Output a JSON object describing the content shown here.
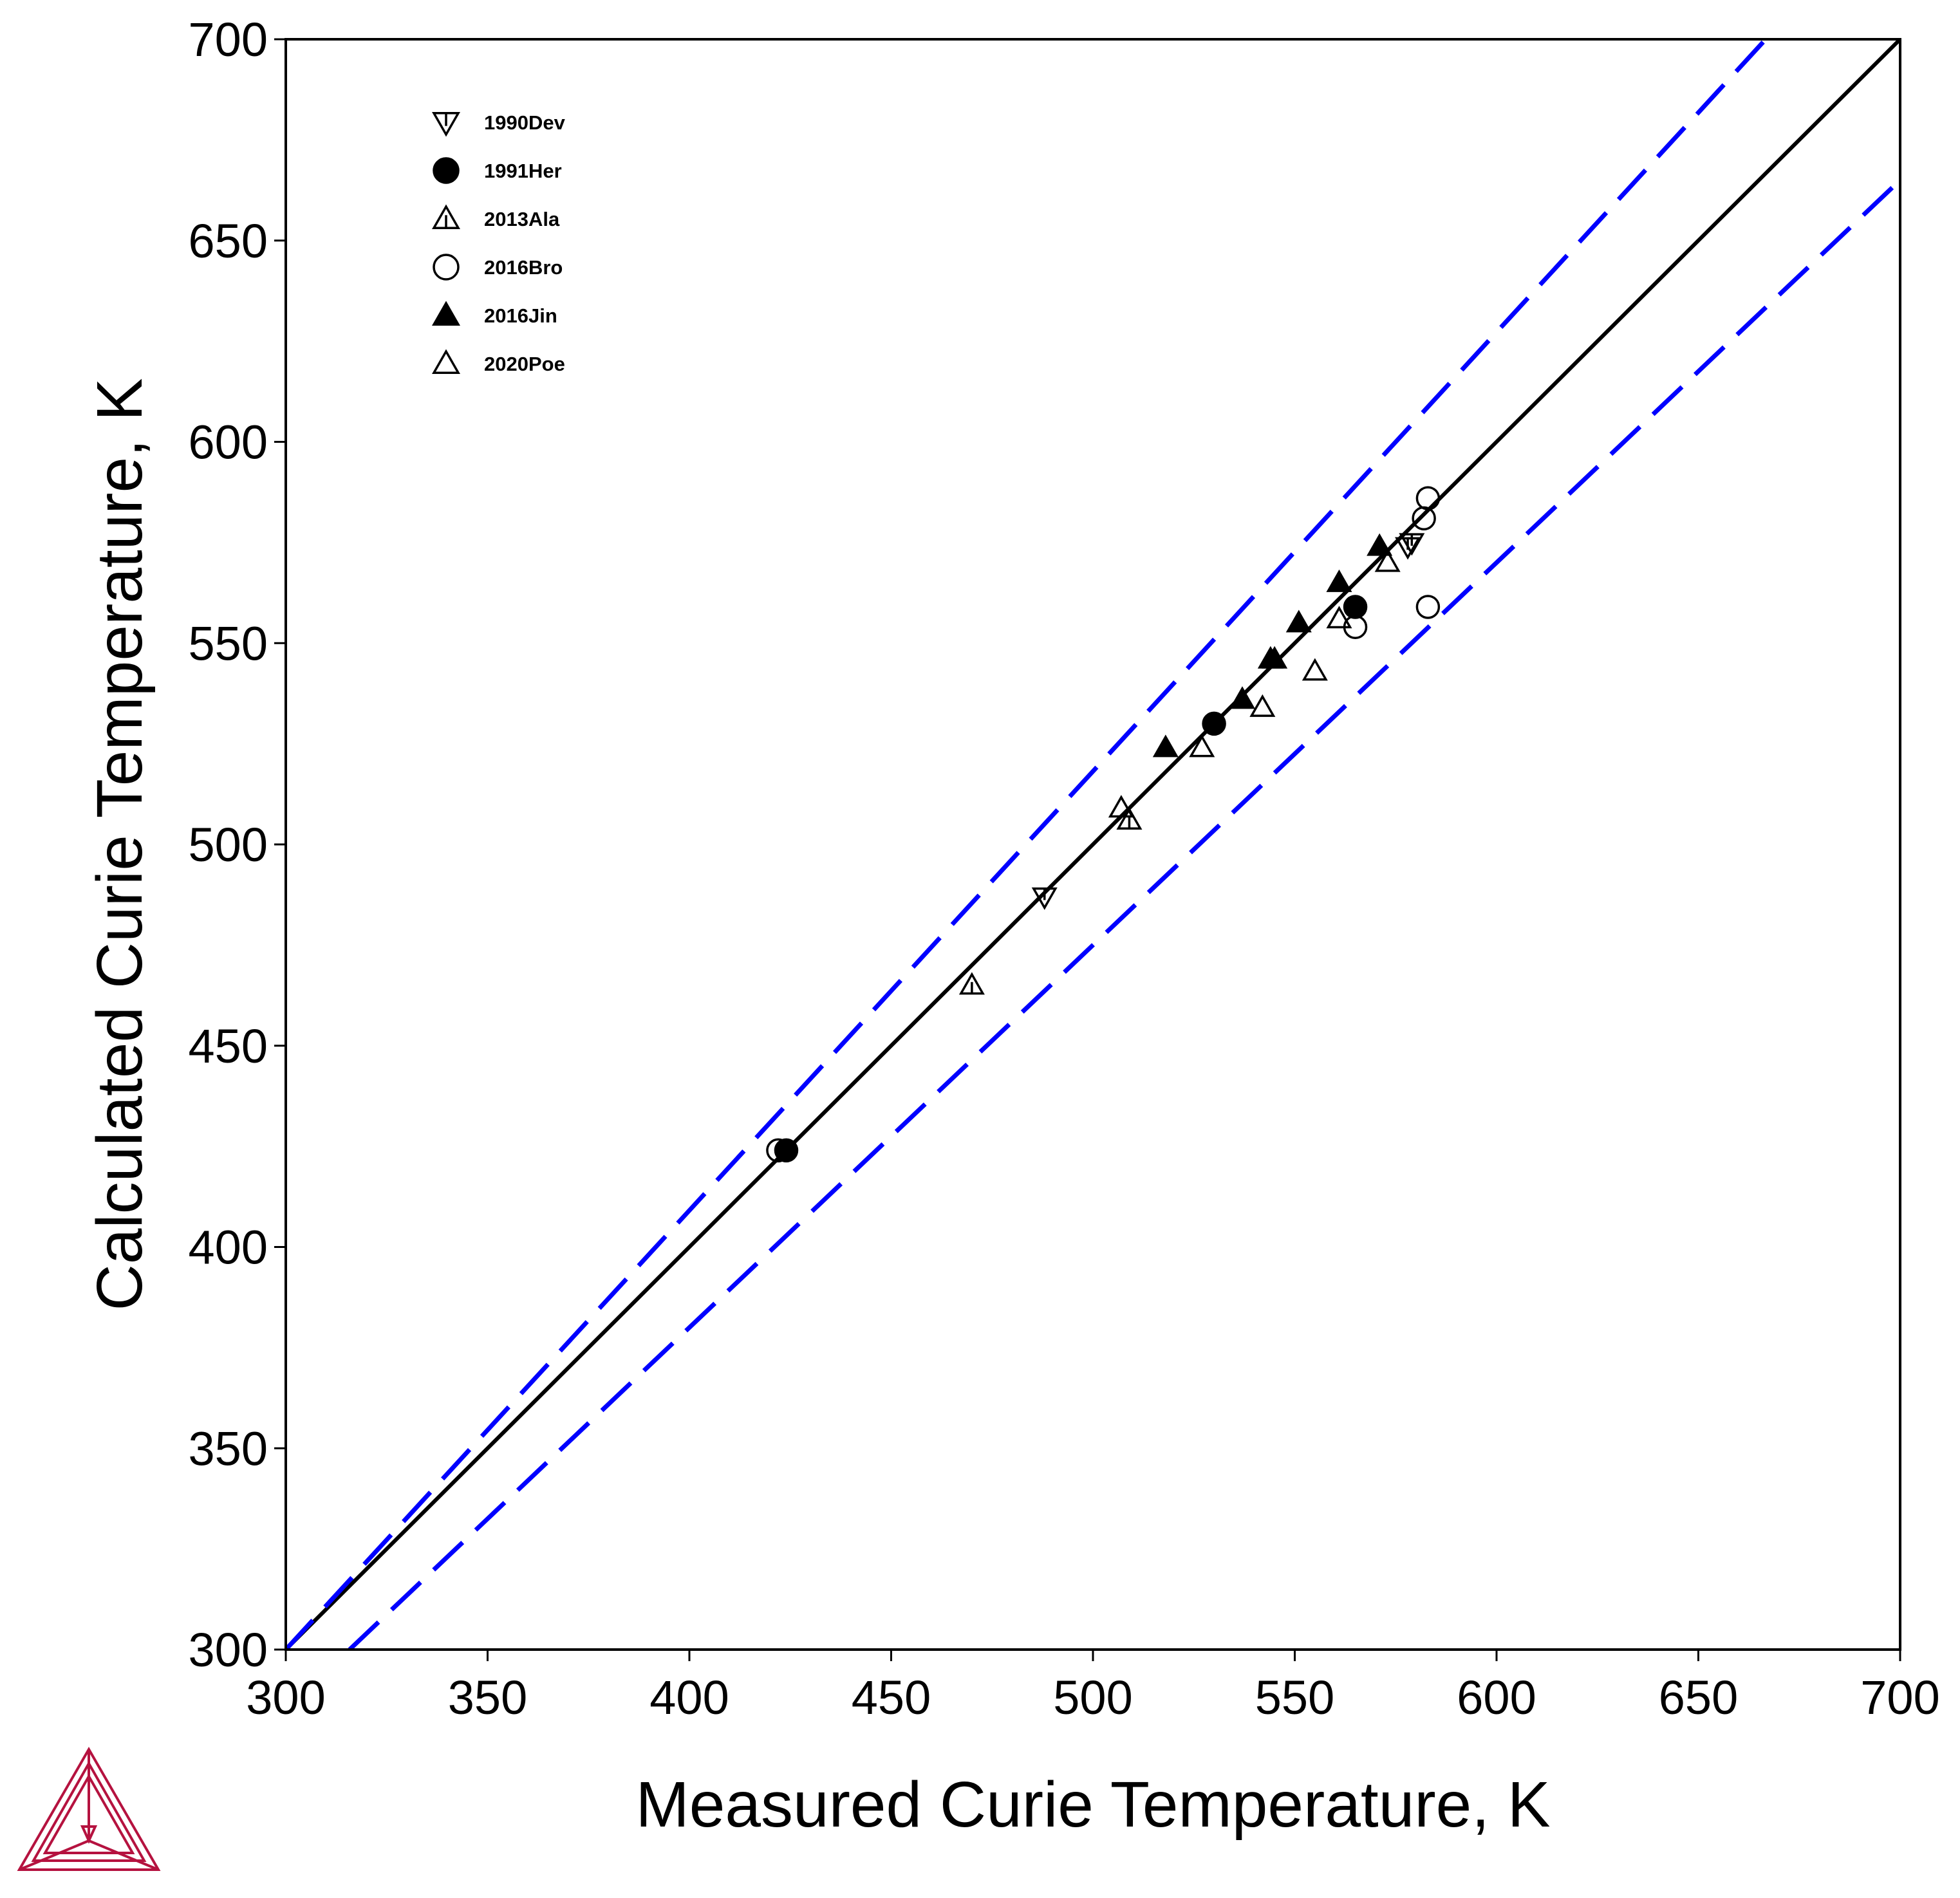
{
  "chart_data": {
    "type": "scatter",
    "xlabel": "Measured Curie Temperature, K",
    "ylabel": "Calculated Curie Temperature, K",
    "xlim": [
      300,
      700
    ],
    "ylim": [
      300,
      700
    ],
    "xticks": [
      300,
      350,
      400,
      450,
      500,
      550,
      600,
      650,
      700
    ],
    "yticks": [
      300,
      350,
      400,
      450,
      500,
      550,
      600,
      650,
      700
    ],
    "grid": false,
    "legend_position": "top-left",
    "reference_lines": [
      {
        "style": "solid",
        "color": "#000000",
        "x": [
          300,
          700
        ],
        "y": [
          300,
          700
        ]
      },
      {
        "style": "dashed",
        "color": "#0000ff",
        "x": [
          300,
          666.7
        ],
        "y": [
          300,
          700
        ]
      },
      {
        "style": "dashed",
        "color": "#0000ff",
        "x": [
          315.8,
          700
        ],
        "y": [
          300,
          665
        ]
      }
    ],
    "series": [
      {
        "name": "1990Dev",
        "marker": "triangle-down-open",
        "points": [
          [
            488,
            487
          ],
          [
            578,
            574
          ],
          [
            579,
            575
          ]
        ]
      },
      {
        "name": "1991Her",
        "marker": "circle-filled",
        "points": [
          [
            424,
            424
          ],
          [
            530,
            530
          ],
          [
            565,
            559
          ]
        ]
      },
      {
        "name": "2013Ala",
        "marker": "triangle-up-tick-open",
        "points": [
          [
            470,
            465
          ],
          [
            509,
            506
          ]
        ]
      },
      {
        "name": "2016Bro",
        "marker": "circle-open",
        "points": [
          [
            422,
            424
          ],
          [
            565,
            554
          ],
          [
            582,
            581
          ],
          [
            583,
            586
          ],
          [
            583,
            559
          ]
        ]
      },
      {
        "name": "2016Jin",
        "marker": "triangle-up-filled",
        "points": [
          [
            518,
            524
          ],
          [
            537,
            536
          ],
          [
            544,
            546
          ],
          [
            545,
            546
          ],
          [
            551,
            555
          ],
          [
            561,
            565
          ],
          [
            571,
            574
          ]
        ]
      },
      {
        "name": "2020Poe",
        "marker": "triangle-up-open",
        "points": [
          [
            507,
            509
          ],
          [
            527,
            524
          ],
          [
            542,
            534
          ],
          [
            555,
            543
          ],
          [
            561,
            556
          ],
          [
            573,
            570
          ]
        ]
      }
    ]
  },
  "logo": {
    "name": "Thermo-Calc logo",
    "color": "#b5123f"
  }
}
